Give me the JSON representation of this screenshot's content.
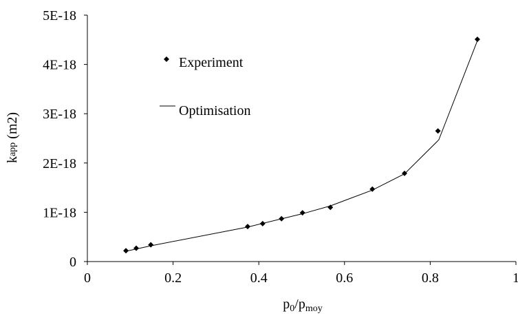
{
  "chart_data": {
    "type": "scatter-line",
    "x_label_parts": [
      "p",
      "0",
      "/p",
      "moy"
    ],
    "y_label_parts": [
      "k",
      "app",
      " (m2)"
    ],
    "xlim": [
      0,
      1
    ],
    "xticks": [
      0,
      0.2,
      0.4,
      0.6,
      0.8,
      1
    ],
    "ylim": [
      0,
      5e-18
    ],
    "yticks": [
      0,
      {
        "value": 1e-18,
        "label": "1E-18"
      },
      {
        "value": 2e-18,
        "label": "2E-18"
      },
      {
        "value": 3e-18,
        "label": "3E-18"
      },
      {
        "value": 4e-18,
        "label": "4E-18"
      },
      {
        "value": 5e-18,
        "label": "5E-18"
      }
    ],
    "series": [
      {
        "name": "Experiment",
        "color": "#000000",
        "marker": "diamond",
        "x": [
          0.09,
          0.114,
          0.148,
          0.374,
          0.409,
          0.453,
          0.502,
          0.567,
          0.665,
          0.74,
          0.818,
          0.91
        ],
        "values": [
          2.2e-19,
          2.7e-19,
          3.4e-19,
          7.1e-19,
          7.7e-19,
          8.7e-19,
          9.9e-19,
          1.1e-18,
          1.47e-18,
          1.79e-18,
          2.65e-18,
          4.51e-18
        ]
      },
      {
        "name": "Optimisation",
        "color": "#000000",
        "marker": "line",
        "x": [
          0.09,
          0.148,
          0.374,
          0.502,
          0.567,
          0.665,
          0.74,
          0.82,
          0.91
        ],
        "values": [
          2.1e-19,
          3.2e-19,
          7e-19,
          9.7e-19,
          1.13e-18,
          1.45e-18,
          1.78e-18,
          2.47e-18,
          4.48e-18
        ]
      }
    ]
  }
}
